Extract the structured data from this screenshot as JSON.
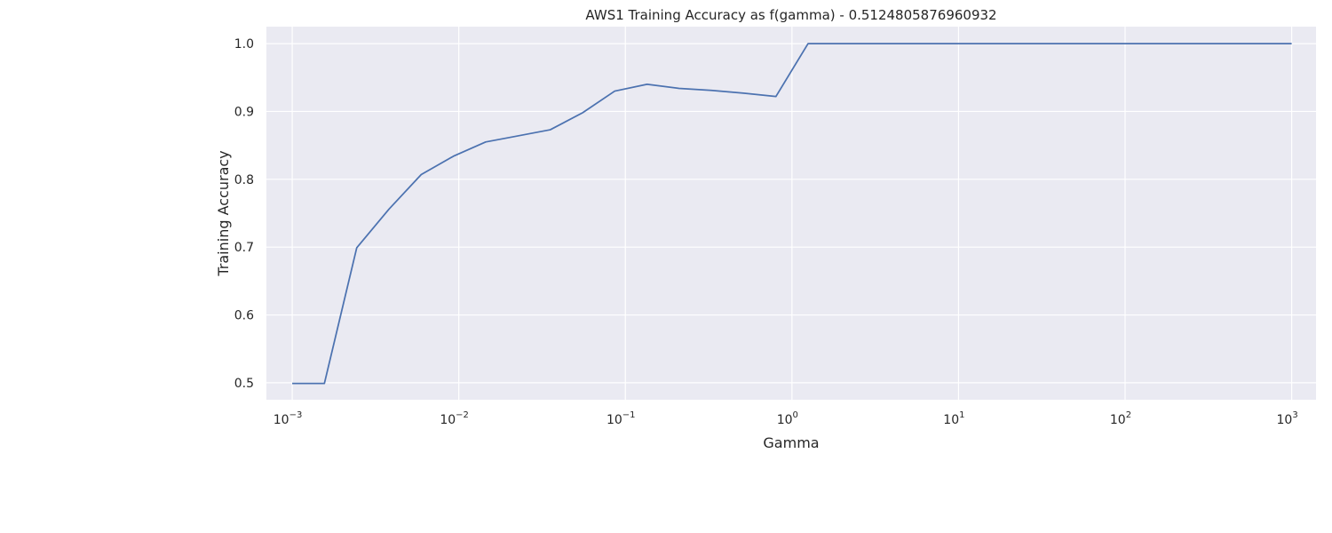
{
  "chart_data": {
    "type": "line",
    "title": "AWS1 Training Accuracy as f(gamma) - 0.5124805876960932",
    "xlabel": "Gamma",
    "ylabel": "Training Accuracy",
    "xscale": "log",
    "xlim": [
      0.0007,
      1400
    ],
    "ylim": [
      0.475,
      1.025
    ],
    "grid": true,
    "background": "#eaeaf2",
    "grid_color": "#ffffff",
    "line_color": "#4c72b0",
    "x_ticks": [
      {
        "base": "10",
        "exp": "−3",
        "value": 0.001
      },
      {
        "base": "10",
        "exp": "−2",
        "value": 0.01
      },
      {
        "base": "10",
        "exp": "−1",
        "value": 0.1
      },
      {
        "base": "10",
        "exp": "0",
        "value": 1
      },
      {
        "base": "10",
        "exp": "1",
        "value": 10
      },
      {
        "base": "10",
        "exp": "2",
        "value": 100
      },
      {
        "base": "10",
        "exp": "3",
        "value": 1000
      }
    ],
    "y_ticks": [
      {
        "label": "0.5",
        "value": 0.5
      },
      {
        "label": "0.6",
        "value": 0.6
      },
      {
        "label": "0.7",
        "value": 0.7
      },
      {
        "label": "0.8",
        "value": 0.8
      },
      {
        "label": "0.9",
        "value": 0.9
      },
      {
        "label": "1.0",
        "value": 1.0
      }
    ],
    "series": [
      {
        "x": [
          0.001,
          0.00156,
          0.00244,
          0.00381,
          0.00595,
          0.00929,
          0.0145,
          0.0227,
          0.0354,
          0.0553,
          0.0863,
          0.135,
          0.21,
          0.329,
          0.513,
          0.801,
          1.25,
          1.95,
          3.05,
          4.76,
          7.43,
          11.6,
          18.1,
          28.3,
          44.2,
          69.0,
          108,
          168,
          263,
          410,
          640,
          1000
        ],
        "y": [
          0.499,
          0.499,
          0.699,
          0.756,
          0.807,
          0.834,
          0.855,
          0.864,
          0.873,
          0.898,
          0.93,
          0.94,
          0.934,
          0.931,
          0.927,
          0.922,
          1.0,
          1.0,
          1.0,
          1.0,
          1.0,
          1.0,
          1.0,
          1.0,
          1.0,
          1.0,
          1.0,
          1.0,
          1.0,
          1.0,
          1.0,
          1.0
        ]
      }
    ]
  }
}
